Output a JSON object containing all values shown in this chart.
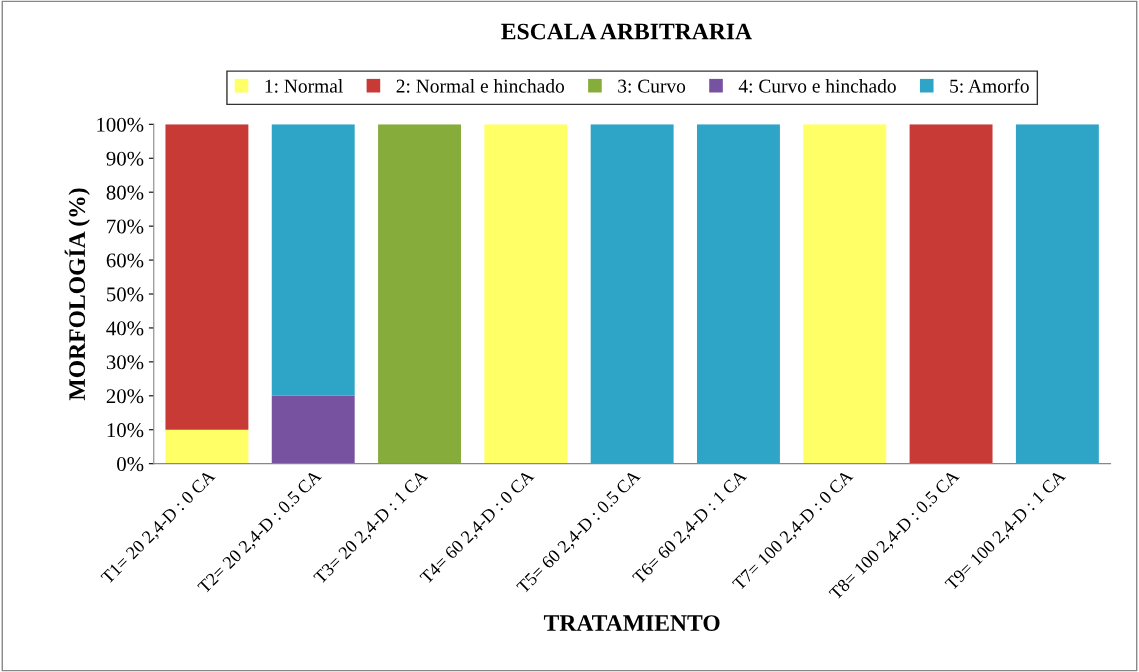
{
  "chart_data": {
    "type": "bar",
    "stacked": true,
    "title": "ESCALA ARBITRARIA",
    "xlabel": "TRATAMIENTO",
    "ylabel": "MORFOLOGÍA (%)",
    "categories": [
      "T1= 20 2,4-D : 0 CA",
      "T2= 20 2,4-D : 0.5 CA",
      "T3= 20 2,4-D : 1 CA",
      "T4= 60 2,4-D : 0 CA",
      "T5= 60 2,4-D : 0.5 CA",
      "T6= 60 2,4-D : 1 CA",
      "T7= 100 2,4-D : 0 CA",
      "T8= 100 2,4-D : 0.5 CA",
      "T9= 100 2,4-D : 1 CA"
    ],
    "series": [
      {
        "name": "1: Normal",
        "color": "#ffff66",
        "values": [
          10,
          0,
          0,
          100,
          0,
          0,
          100,
          0,
          0
        ]
      },
      {
        "name": "2: Normal e hinchado",
        "color": "#c83a36",
        "values": [
          90,
          0,
          0,
          0,
          0,
          0,
          0,
          100,
          0
        ]
      },
      {
        "name": "3: Curvo",
        "color": "#86ad3c",
        "values": [
          0,
          0,
          100,
          0,
          0,
          0,
          0,
          0,
          0
        ]
      },
      {
        "name": "4: Curvo e hinchado",
        "color": "#7652a0",
        "values": [
          0,
          20,
          0,
          0,
          0,
          0,
          0,
          0,
          0
        ]
      },
      {
        "name": "5: Amorfo",
        "color": "#2ea4c6",
        "values": [
          0,
          80,
          0,
          0,
          100,
          100,
          0,
          0,
          100
        ]
      }
    ],
    "ylim": [
      0,
      100
    ],
    "yticks": [
      {
        "value": 0,
        "label": "0%"
      },
      {
        "value": 10,
        "label": "10%"
      },
      {
        "value": 20,
        "label": "20%"
      },
      {
        "value": 30,
        "label": "30%"
      },
      {
        "value": 40,
        "label": "40%"
      },
      {
        "value": 50,
        "label": "50%"
      },
      {
        "value": 60,
        "label": "60%"
      },
      {
        "value": 70,
        "label": "70%"
      },
      {
        "value": 80,
        "label": "80%"
      },
      {
        "value": 90,
        "label": "90%"
      },
      {
        "value": 100,
        "label": "100%"
      }
    ],
    "grid": false,
    "legend": "top"
  }
}
